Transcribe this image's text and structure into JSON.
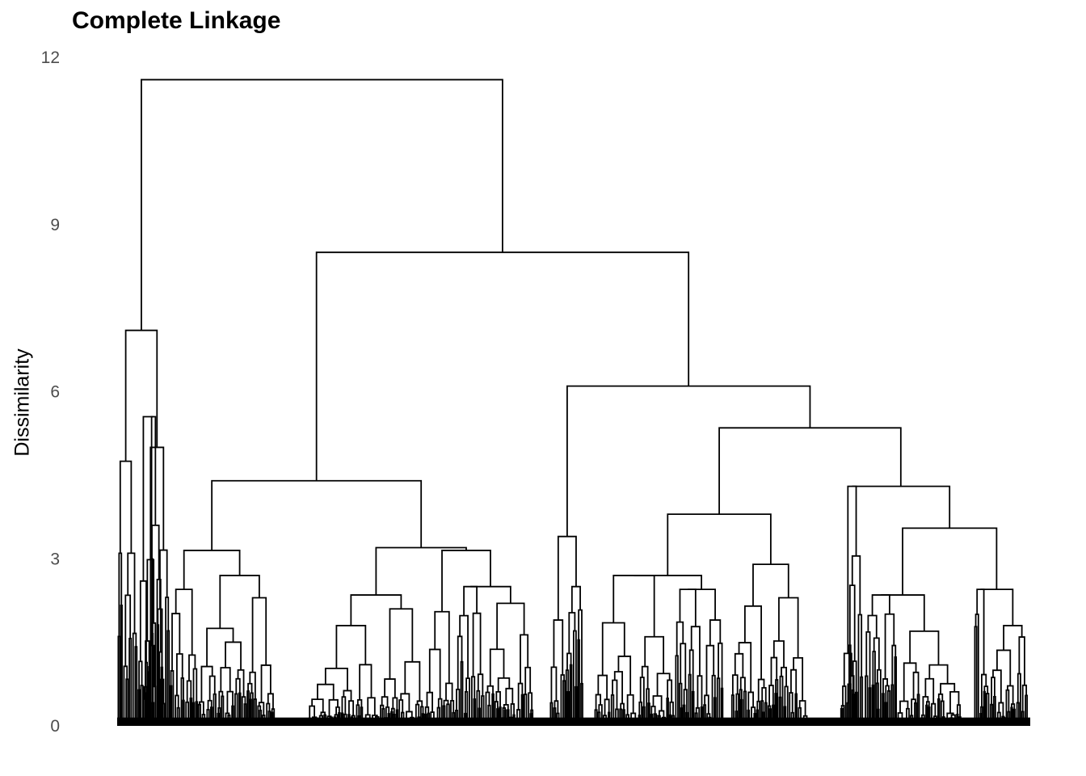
{
  "chart_data": {
    "type": "dendrogram",
    "title": "Complete Linkage",
    "xlabel": "",
    "ylabel": "Dissimilarity",
    "ylim": [
      0,
      12
    ],
    "yticks": [
      0,
      3,
      6,
      9,
      12
    ],
    "grid": false,
    "legend": "none",
    "line_color": "#000000",
    "leaf_count_approx": 1000,
    "merges": [
      {
        "height": 11.6,
        "left": "left-cluster",
        "right": "main-cluster"
      },
      {
        "height": 7.1,
        "cluster": "left-cluster"
      },
      {
        "height": 8.5,
        "cluster": "main-cluster"
      },
      {
        "height": 4.4,
        "cluster": "middle-cluster"
      },
      {
        "height": 6.1,
        "cluster": "right-cluster"
      },
      {
        "height": 5.35,
        "cluster": "right-cluster-b"
      },
      {
        "height": 4.3,
        "cluster": "right-cluster-c"
      },
      {
        "height": 3.8,
        "cluster": "right-cluster-d"
      },
      {
        "height": 3.55,
        "cluster": "right-cluster-e"
      },
      {
        "height": 3.2,
        "cluster": "middle-a"
      },
      {
        "height": 3.2,
        "cluster": "middle-b"
      },
      {
        "height": 3.4,
        "cluster": "right-a"
      }
    ]
  }
}
